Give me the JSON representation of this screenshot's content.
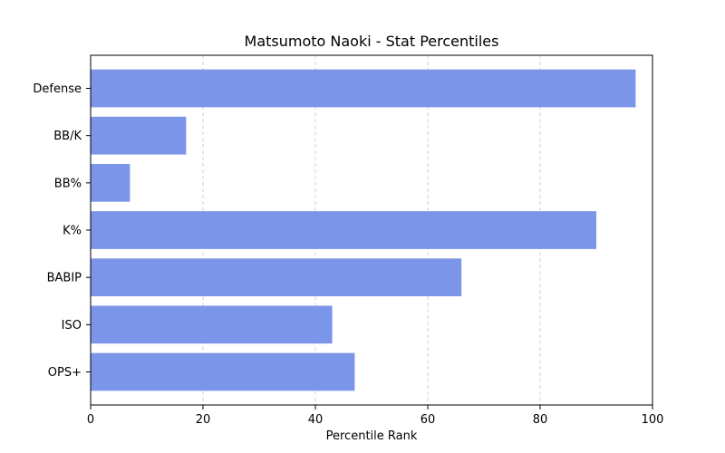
{
  "chart_data": {
    "type": "bar",
    "orientation": "horizontal",
    "title": "Matsumoto Naoki - Stat Percentiles",
    "xlabel": "Percentile Rank",
    "ylabel": "",
    "categories": [
      "Defense",
      "BB/K",
      "BB%",
      "K%",
      "BABIP",
      "ISO",
      "OPS+"
    ],
    "values": [
      97,
      17,
      7,
      90,
      66,
      43,
      47
    ],
    "xlim": [
      0,
      100
    ],
    "xticks": [
      "0",
      "20",
      "40",
      "60",
      "80",
      "100"
    ],
    "grid": "x-dashed",
    "bar_color": "#7b96e9"
  }
}
